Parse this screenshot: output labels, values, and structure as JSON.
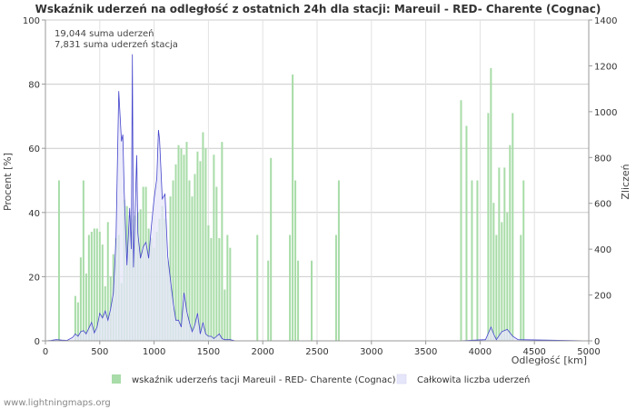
{
  "chart_data": {
    "type": "bar",
    "title": "Wskaźnik uderzeń na odległość z ostatnich 24h dla stacji: Mareuil - RED- Charente (Cognac)",
    "xlabel": "Odległość   [km]",
    "ylabel_left": "Procent   [%]",
    "ylabel_right": "Zliczeń",
    "xlim": [
      0,
      5000
    ],
    "ylim_left": [
      0,
      100
    ],
    "ylim_right": [
      0,
      1400
    ],
    "x_ticks": [
      "0",
      "500",
      "1000",
      "1500",
      "2000",
      "2500",
      "3000",
      "3500",
      "4000",
      "4500",
      "5000"
    ],
    "y_ticks_left": [
      "0",
      "20",
      "40",
      "60",
      "80",
      "100"
    ],
    "y_ticks_right": [
      "0",
      "200",
      "400",
      "600",
      "800",
      "1000",
      "1200",
      "1400"
    ],
    "annotations": [
      "19,044 suma uderzeń",
      "7,831 suma uderzeń stacja"
    ],
    "colors": {
      "bar": "#a8dca8",
      "area_fill": "#e6e6fa",
      "line": "#4444cc",
      "grid": "#cccccc"
    },
    "series": [
      {
        "name": "wskaźnik uderzeńs tacji Mareuil - RED- Charente (Cognac)",
        "axis": "left",
        "x": [
          125,
          275,
          300,
          325,
          350,
          375,
          400,
          425,
          450,
          475,
          500,
          525,
          550,
          575,
          600,
          625,
          650,
          675,
          700,
          725,
          750,
          775,
          800,
          825,
          850,
          875,
          900,
          925,
          950,
          975,
          1000,
          1025,
          1050,
          1075,
          1100,
          1125,
          1150,
          1175,
          1200,
          1225,
          1250,
          1275,
          1300,
          1325,
          1350,
          1375,
          1400,
          1425,
          1450,
          1475,
          1500,
          1525,
          1550,
          1575,
          1600,
          1625,
          1650,
          1675,
          1700,
          1950,
          2050,
          2075,
          2250,
          2275,
          2300,
          2325,
          2450,
          2675,
          2700,
          3825,
          3875,
          3925,
          3975,
          4075,
          4100,
          4125,
          4150,
          4175,
          4200,
          4225,
          4250,
          4275,
          4300,
          4375,
          4400
        ],
        "values": [
          50,
          14,
          12,
          26,
          50,
          21,
          33,
          34,
          35,
          35,
          34,
          30,
          17,
          37,
          20,
          27,
          32,
          33,
          18,
          44,
          42,
          39,
          38,
          39,
          40,
          41,
          48,
          48,
          35,
          32,
          29,
          34,
          38,
          42,
          38,
          25,
          45,
          50,
          55,
          61,
          60,
          58,
          62,
          50,
          45,
          52,
          59,
          56,
          65,
          60,
          36,
          32,
          58,
          48,
          32,
          62,
          16,
          33,
          29,
          33,
          25,
          57,
          33,
          83,
          50,
          25,
          25,
          33,
          50,
          75,
          67,
          50,
          50,
          71,
          85,
          43,
          33,
          54,
          37,
          54,
          40,
          61,
          71,
          33,
          50
        ]
      },
      {
        "name": "Całkowita liczba uderzeń",
        "axis": "right",
        "x": [
          0,
          50,
          100,
          150,
          200,
          250,
          275,
          300,
          325,
          350,
          375,
          400,
          425,
          450,
          475,
          500,
          525,
          550,
          575,
          600,
          625,
          650,
          675,
          700,
          712,
          725,
          750,
          775,
          790,
          800,
          810,
          825,
          840,
          850,
          875,
          900,
          925,
          950,
          975,
          1000,
          1025,
          1040,
          1050,
          1075,
          1100,
          1125,
          1150,
          1175,
          1200,
          1225,
          1250,
          1275,
          1300,
          1325,
          1350,
          1375,
          1400,
          1425,
          1450,
          1475,
          1500,
          1525,
          1550,
          1575,
          1600,
          1625,
          1650,
          1700,
          1750,
          2000,
          2250,
          2300,
          3800,
          4050,
          4100,
          4125,
          4150,
          4200,
          4250,
          4300,
          4350,
          5000
        ],
        "values": [
          0,
          2,
          5,
          3,
          2,
          15,
          30,
          20,
          40,
          45,
          30,
          55,
          80,
          35,
          60,
          120,
          100,
          130,
          90,
          140,
          210,
          450,
          1090,
          870,
          900,
          650,
          330,
          580,
          400,
          1250,
          320,
          560,
          810,
          470,
          360,
          410,
          430,
          360,
          500,
          620,
          710,
          920,
          880,
          620,
          640,
          370,
          270,
          170,
          90,
          90,
          60,
          210,
          130,
          80,
          40,
          70,
          120,
          30,
          80,
          30,
          20,
          20,
          10,
          20,
          30,
          10,
          5,
          5,
          0,
          0,
          0,
          0,
          0,
          5,
          60,
          30,
          5,
          40,
          50,
          20,
          5,
          0
        ]
      }
    ]
  },
  "footer": {
    "watermark": "www.lightningmaps.org"
  }
}
